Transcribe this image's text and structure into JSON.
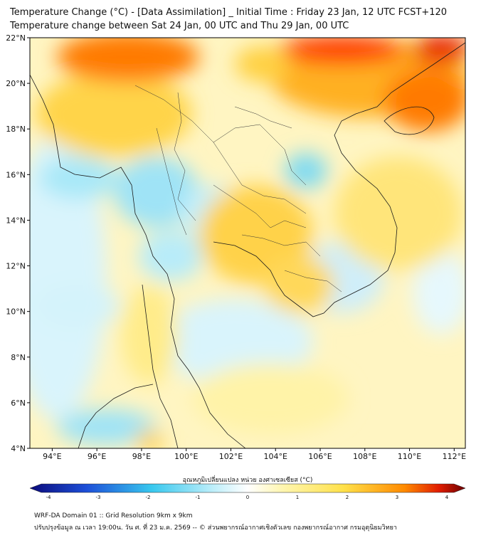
{
  "header": {
    "title_line1": "Temperature Change (°C) - [Data Assimilation] _ Initial Time : Friday 23 Jan, 12 UTC FCST+120",
    "title_line2": "Temperature change between Sat 24 Jan, 00 UTC and Thu 29 Jan, 00 UTC"
  },
  "map": {
    "lat_labels": [
      "22°N",
      "20°N",
      "18°N",
      "16°N",
      "14°N",
      "12°N",
      "10°N",
      "8°N",
      "6°N",
      "4°N"
    ],
    "lon_labels": [
      "94°E",
      "96°E",
      "98°E",
      "100°E",
      "102°E",
      "104°E",
      "106°E",
      "108°E",
      "110°E",
      "112°E"
    ],
    "lat_range": [
      4,
      22
    ],
    "lon_range": [
      93,
      112.5
    ]
  },
  "colorbar": {
    "title": "อุณหภูมิเปลี่ยนแปลง หน่วย องศาเซลเซียส (°C)",
    "range": [
      -4,
      4
    ],
    "tick_labels": [
      "-4",
      "-3",
      "-2",
      "-1",
      "0",
      "1",
      "2",
      "3",
      "4"
    ],
    "colors": {
      "min": "#0a0a7a",
      "cold": "#1d4fd8",
      "cool": "#38c8ee",
      "neutral": "#ffffff",
      "warm": "#ffe14a",
      "hot": "#ff8a00",
      "max": "#6a0000"
    }
  },
  "footer": {
    "line1": "WRF-DA Domain 01 :: Grid Resolution 9km x 9km",
    "line2": "ปรับปรุงข้อมูล ณ เวลา 19:00น. วัน ศ. ที่ 23 ม.ค. 2569 -- © ส่วนพยากรณ์อากาศเชิงตัวเลข กองพยากรณ์อากาศ กรมอุตุนิยมวิทยา"
  }
}
